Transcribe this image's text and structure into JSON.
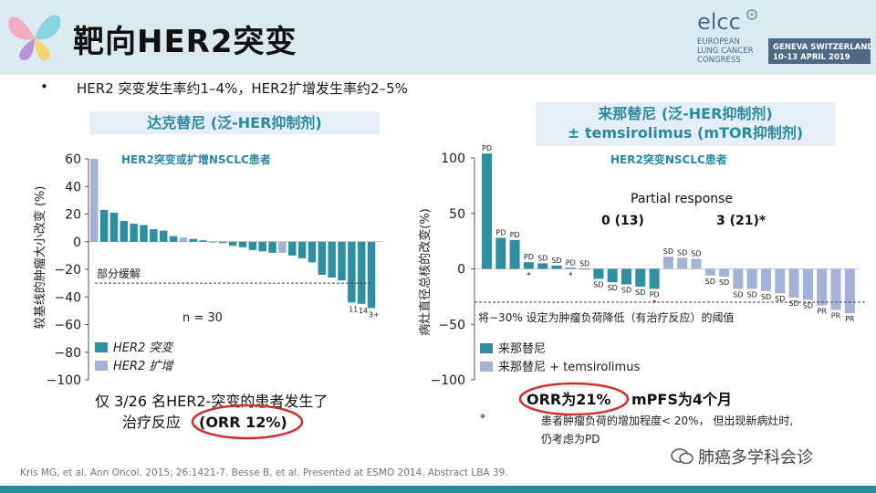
{
  "slide": {
    "title": "靶向HER2突变",
    "bullet": "HER2 突变发生率约1–4%，HER2扩增发生率约2–5%",
    "citation": "Kris MG, et al. Ann Oncol. 2015; 26:1421-7. Besse B, et al. Presented at ESMO 2014. Abstract LBA 39.",
    "watermark": "肺癌多学科会诊"
  },
  "logo": {
    "name": "elcc",
    "line1": "EUROPEAN",
    "line2": "LUNG CANCER",
    "line3": "CONGRESS",
    "location": "GENEVA SWITZERLAND",
    "dates": "10-13 APRIL 2019"
  },
  "colors": {
    "teal": "#2e8fa3",
    "lavender": "#a3b2d6",
    "header_bg": "#dbeaf1",
    "ellipse": "#d32f2f"
  },
  "left_panel": {
    "title": "达克替尼 (泛-HER抑制剂)",
    "subtitle": "HER2突变或扩增NSCLC患者",
    "footnote_line1": "仅 3/26 名HER2-突变的患者发生了",
    "footnote_line2a": "治疗反应",
    "footnote_line2b": "(ORR 12%)"
  },
  "right_panel": {
    "title_line1": "来那替尼 (泛-HER抑制剂)",
    "title_line2": "± temsirolimus (mTOR抑制剂)",
    "subtitle": "HER2突变NSCLC患者",
    "outcome_a": "ORR为21%",
    "outcome_b": "mPFS为4个月",
    "footnote_star": "*",
    "footnote_line1": "患者肿瘤负荷的增加程度< 20%， 但出现新病灶时,",
    "footnote_line2": "仍考虑为PD"
  },
  "chart_data": [
    {
      "type": "bar",
      "title": "达克替尼 (泛-HER抑制剂)",
      "ylabel": "较基线的肿瘤大小改变 (%)",
      "ylim": [
        -100,
        60
      ],
      "yticks": [
        "60",
        "40",
        "20",
        "0",
        "−20",
        "−40",
        "−60",
        "−80",
        "−100"
      ],
      "threshold": -30,
      "threshold_label": "部分缓解",
      "n_label": "n = 30",
      "legend": [
        "HER2 突变",
        "HER2 扩增"
      ],
      "legend_position": "bottom-left",
      "bars": [
        {
          "value": 60,
          "series": 1
        },
        {
          "value": 23,
          "series": 0
        },
        {
          "value": 21,
          "series": 0
        },
        {
          "value": 15,
          "series": 0
        },
        {
          "value": 13,
          "series": 0
        },
        {
          "value": 12,
          "series": 0
        },
        {
          "value": 9,
          "series": 0
        },
        {
          "value": 8,
          "series": 0
        },
        {
          "value": 4,
          "series": 0
        },
        {
          "value": 3,
          "series": 1
        },
        {
          "value": 2,
          "series": 0
        },
        {
          "value": 1,
          "series": 0
        },
        {
          "value": 0,
          "series": 0
        },
        {
          "value": -1,
          "series": 0
        },
        {
          "value": -3,
          "series": 0
        },
        {
          "value": -4,
          "series": 0
        },
        {
          "value": -6,
          "series": 0
        },
        {
          "value": -7,
          "series": 0
        },
        {
          "value": -8,
          "series": 0
        },
        {
          "value": -8,
          "series": 1
        },
        {
          "value": -10,
          "series": 0
        },
        {
          "value": -12,
          "series": 0
        },
        {
          "value": -15,
          "series": 0
        },
        {
          "value": -24,
          "series": 0
        },
        {
          "value": -26,
          "series": 0
        },
        {
          "value": -28,
          "series": 0
        },
        {
          "value": -44,
          "series": 0
        },
        {
          "value": -45,
          "series": 0
        },
        {
          "value": -48,
          "series": 0
        }
      ],
      "bar_labels": [
        {
          "bar": 26,
          "text": "11"
        },
        {
          "bar": 27,
          "text": "14"
        },
        {
          "bar": 28,
          "text": "3+"
        }
      ]
    },
    {
      "type": "bar",
      "title": "来那替尼 (泛-HER抑制剂) ± temsirolimus (mTOR抑制剂)",
      "ylabel": "病灶直径总核的改变(%)",
      "ylim": [
        -100,
        100
      ],
      "yticks": [
        "100",
        "50",
        "0",
        "−50",
        "−100"
      ],
      "threshold": -30,
      "threshold_label": "将−30% 设定为肿瘤负荷降低（有治疗反应）的阈值",
      "annotation_title": "Partial response",
      "annotation_a": "0 (13)",
      "annotation_b": "3 (21)*",
      "legend": [
        "来那替尼",
        "来那替尼 + temsirolimus"
      ],
      "legend_position": "bottom-left",
      "bars": [
        {
          "value": 104,
          "series": 0,
          "label": "PD"
        },
        {
          "value": 28,
          "series": 0,
          "label": "PD"
        },
        {
          "value": 26,
          "series": 0,
          "label": "PD"
        },
        {
          "value": 6,
          "series": 0,
          "label": "PD",
          "star": true
        },
        {
          "value": 5,
          "series": 0,
          "label": "SD"
        },
        {
          "value": 3,
          "series": 0,
          "label": "SD"
        },
        {
          "value": 1,
          "series": 0,
          "label": "PD",
          "star": true
        },
        {
          "value": 0,
          "series": 0,
          "label": "SD"
        },
        {
          "value": -9,
          "series": 0,
          "label": "SD"
        },
        {
          "value": -12,
          "series": 0,
          "label": "SD"
        },
        {
          "value": -14,
          "series": 0,
          "label": "SD"
        },
        {
          "value": -16,
          "series": 0,
          "label": "SD"
        },
        {
          "value": -18,
          "series": 0,
          "label": "PD",
          "star": true
        },
        {
          "value": 11,
          "series": 1,
          "label": "SD"
        },
        {
          "value": 10,
          "series": 1,
          "label": "SD"
        },
        {
          "value": 9,
          "series": 1,
          "label": "SD"
        },
        {
          "value": -6,
          "series": 1,
          "label": "SD"
        },
        {
          "value": -7,
          "series": 1,
          "label": "SD"
        },
        {
          "value": -18,
          "series": 1,
          "label": "SD"
        },
        {
          "value": -18,
          "series": 1,
          "label": "SD"
        },
        {
          "value": -20,
          "series": 1,
          "label": "SD"
        },
        {
          "value": -22,
          "series": 1,
          "label": "SD"
        },
        {
          "value": -26,
          "series": 1,
          "label": "SD"
        },
        {
          "value": -28,
          "series": 1,
          "label": "SD"
        },
        {
          "value": -33,
          "series": 1,
          "label": "PR"
        },
        {
          "value": -37,
          "series": 1,
          "label": "PR"
        },
        {
          "value": -40,
          "series": 1,
          "label": "PR"
        }
      ]
    }
  ]
}
